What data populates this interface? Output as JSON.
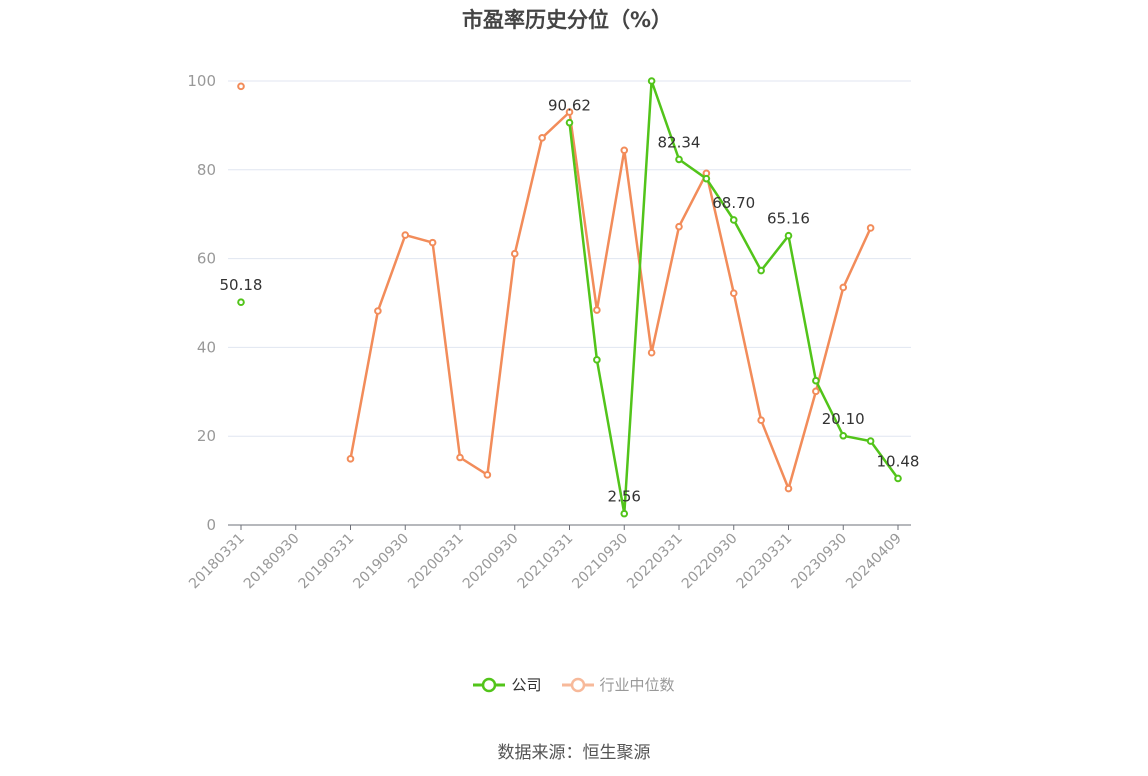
{
  "chart_data": {
    "type": "line",
    "title": "市盈率历史分位（%）",
    "source": "数据来源：恒生聚源",
    "ylim": [
      0,
      100
    ],
    "yticks": [
      0,
      20,
      40,
      60,
      80,
      100
    ],
    "categories": [
      "20180331",
      "20180630",
      "20180930",
      "20181231",
      "20190331",
      "20190630",
      "20190930",
      "20191231",
      "20200331",
      "20200630",
      "20200930",
      "20201231",
      "20210331",
      "20210630",
      "20210930",
      "20211231",
      "20220331",
      "20220630",
      "20220930",
      "20221231",
      "20230331",
      "20230630",
      "20230930",
      "20231231",
      "20240409"
    ],
    "xtick_labels": [
      "20180331",
      "20180930",
      "20190331",
      "20190930",
      "20200331",
      "20200930",
      "20210331",
      "20210930",
      "20220331",
      "20220930",
      "20230331",
      "20230930",
      "20240409"
    ],
    "xtick_label_indices": [
      0,
      2,
      4,
      6,
      8,
      10,
      12,
      14,
      16,
      18,
      20,
      22,
      24
    ],
    "series": [
      {
        "name": "公司",
        "color": "#52c41a",
        "values": [
          50.18,
          null,
          null,
          null,
          null,
          null,
          null,
          null,
          null,
          null,
          null,
          null,
          90.62,
          37.2,
          2.56,
          100,
          82.34,
          78.0,
          68.7,
          57.3,
          65.16,
          32.5,
          20.1,
          18.9,
          10.48
        ],
        "labels": {
          "0": "50.18",
          "12": "90.62",
          "14": "2.56",
          "16": "82.34",
          "18": "68.70",
          "20": "65.16",
          "22": "20.10",
          "24": "10.48"
        }
      },
      {
        "name": "行业中位数",
        "color": "#f28c5a",
        "values": [
          98.8,
          null,
          null,
          null,
          14.9,
          48.2,
          65.3,
          63.6,
          15.2,
          11.3,
          61.1,
          87.2,
          93.0,
          48.4,
          84.4,
          38.8,
          67.2,
          79.2,
          52.2,
          23.6,
          8.2,
          30.1,
          53.5,
          66.9,
          null
        ]
      }
    ],
    "grid": true,
    "legend_position": "bottom-center"
  }
}
